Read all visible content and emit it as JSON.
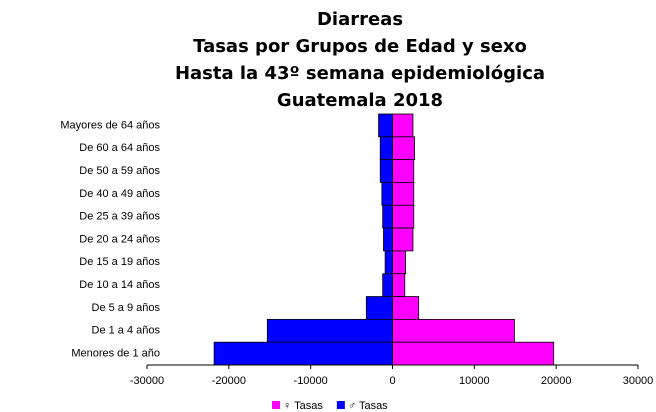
{
  "chart_data": {
    "type": "pyramid",
    "title": [
      "Diarreas",
      "Tasas por Grupos de Edad y sexo",
      "Hasta la 43º semana epidemiológica",
      "Guatemala 2018"
    ],
    "categories": [
      "Mayores de 64 años",
      "De 60 a 64 años",
      "De 50 a 59 años",
      "De 40 a 49 años",
      "De 25 a 39 años",
      "De 20 a 24 años",
      "De 15 a 19 años",
      "De 10 a 14 años",
      "De 5 a 9 años",
      "De 1 a 4 años",
      "Menores de 1 año"
    ],
    "series": [
      {
        "name": "♀ Tasas",
        "color": "#ff00ff",
        "values": [
          2500,
          2700,
          2600,
          2600,
          2600,
          2500,
          1600,
          1500,
          3200,
          14900,
          19700
        ]
      },
      {
        "name": "♂ Tasas",
        "color": "#0000ff",
        "values": [
          -1700,
          -1500,
          -1500,
          -1300,
          -1200,
          -1100,
          -900,
          -1200,
          -3200,
          -15300,
          -21800
        ]
      }
    ],
    "xlim": [
      -30000,
      30000
    ],
    "xticks": [
      -30000,
      -20000,
      -10000,
      0,
      10000,
      20000,
      30000
    ]
  }
}
